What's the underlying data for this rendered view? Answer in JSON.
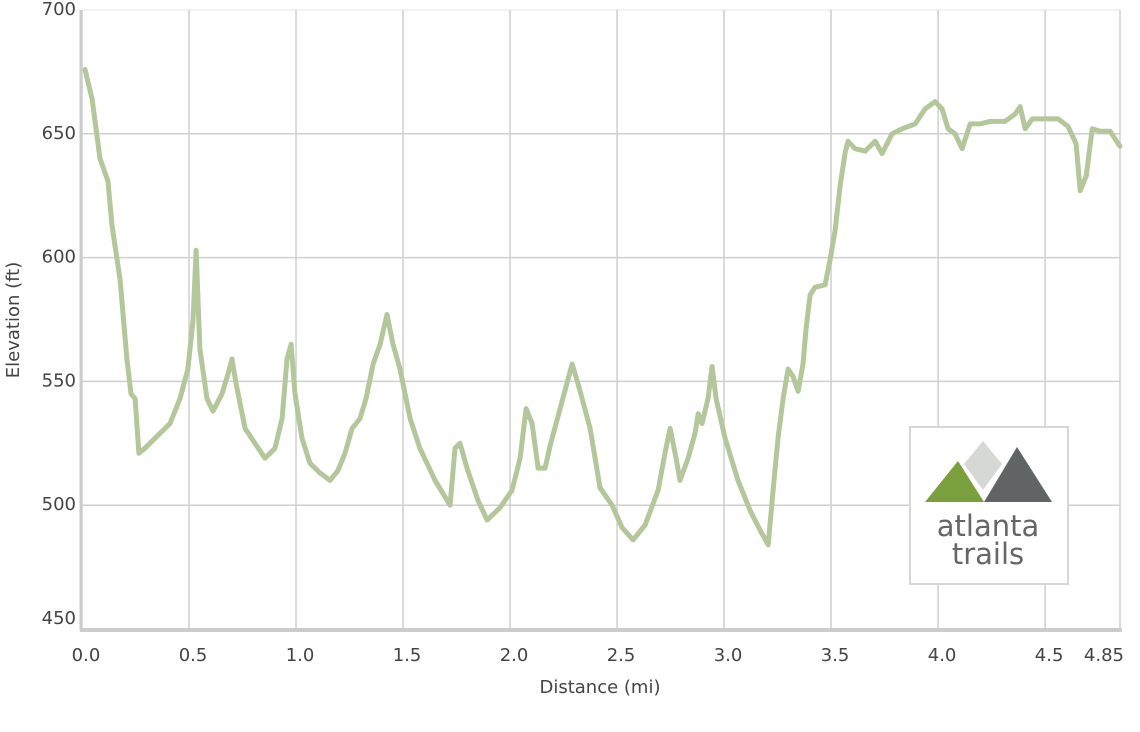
{
  "chart_data": {
    "type": "line",
    "xlabel": "Distance (mi)",
    "ylabel": "Elevation (ft)",
    "x": [
      0.014,
      0.047,
      0.084,
      0.121,
      0.14,
      0.178,
      0.21,
      0.229,
      0.248,
      0.266,
      0.294,
      0.341,
      0.411,
      0.458,
      0.495,
      0.519,
      0.533,
      0.551,
      0.584,
      0.612,
      0.654,
      0.682,
      0.701,
      0.72,
      0.762,
      0.808,
      0.855,
      0.902,
      0.935,
      0.958,
      0.977,
      0.995,
      1.028,
      1.065,
      1.112,
      1.159,
      1.196,
      1.229,
      1.262,
      1.299,
      1.327,
      1.36,
      1.393,
      1.425,
      1.453,
      1.486,
      1.533,
      1.579,
      1.65,
      1.72,
      1.743,
      1.766,
      1.799,
      1.85,
      1.893,
      1.953,
      2.009,
      2.047,
      2.075,
      2.103,
      2.131,
      2.164,
      2.187,
      2.234,
      2.29,
      2.318,
      2.374,
      2.421,
      2.477,
      2.523,
      2.575,
      2.631,
      2.692,
      2.724,
      2.748,
      2.776,
      2.794,
      2.832,
      2.864,
      2.879,
      2.897,
      2.925,
      2.944,
      2.963,
      3.005,
      3.065,
      3.121,
      3.168,
      3.206,
      3.229,
      3.252,
      3.276,
      3.299,
      3.322,
      3.346,
      3.369,
      3.383,
      3.402,
      3.425,
      3.472,
      3.495,
      3.519,
      3.542,
      3.565,
      3.579,
      3.612,
      3.659,
      3.706,
      3.738,
      3.785,
      3.832,
      3.893,
      3.939,
      3.986,
      4.019,
      4.047,
      4.079,
      4.112,
      4.15,
      4.196,
      4.243,
      4.313,
      4.36,
      4.383,
      4.407,
      4.44,
      4.5,
      4.561,
      4.607,
      4.645,
      4.664,
      4.692,
      4.72,
      4.757,
      4.804,
      4.841,
      4.85
    ],
    "series": [
      {
        "color": "#b3c79a",
        "values": [
          676,
          664,
          640,
          631,
          613,
          591,
          559,
          545,
          543,
          521,
          523,
          527,
          533,
          543,
          555,
          575,
          603,
          563,
          543,
          538,
          545,
          553,
          559,
          549,
          531,
          525,
          519,
          523,
          535,
          559,
          565,
          545,
          527,
          517,
          513,
          510,
          514,
          521,
          531,
          535,
          543,
          557,
          565,
          577,
          565,
          555,
          535,
          523,
          510,
          500,
          523,
          525,
          515,
          502,
          494,
          499,
          506,
          519,
          539,
          533,
          515,
          515,
          524,
          539,
          557,
          549,
          531,
          507,
          500,
          491,
          486,
          492,
          506,
          521,
          531,
          519,
          510,
          519,
          529,
          537,
          533,
          543,
          556,
          543,
          527,
          510,
          498,
          490,
          484,
          506,
          527,
          543,
          555,
          552,
          546,
          557,
          571,
          585,
          588,
          589,
          599,
          611,
          629,
          642,
          647,
          644,
          643,
          647,
          642,
          650,
          652,
          654,
          660,
          663,
          660,
          652,
          650,
          644,
          654,
          654,
          655,
          655,
          658,
          661,
          652,
          656,
          656,
          656,
          653,
          646,
          627,
          633,
          652,
          651,
          651,
          646,
          645
        ]
      }
    ],
    "xlim": [
      0,
      4.85
    ],
    "ylim": [
      450,
      700
    ],
    "xticks": [
      {
        "value": 0,
        "label": "0.0"
      },
      0.5,
      {
        "value": 1,
        "label": "1.0"
      },
      1.5,
      {
        "value": 2,
        "label": "2.0"
      },
      2.5,
      {
        "value": 3,
        "label": "3.0"
      },
      3.5,
      {
        "value": 4,
        "label": "4.0"
      },
      4.5,
      4.85
    ],
    "yticks": [
      450,
      500,
      550,
      600,
      650,
      700
    ],
    "grid": true
  },
  "logo": {
    "lines": [
      "atlanta",
      "trails"
    ]
  }
}
